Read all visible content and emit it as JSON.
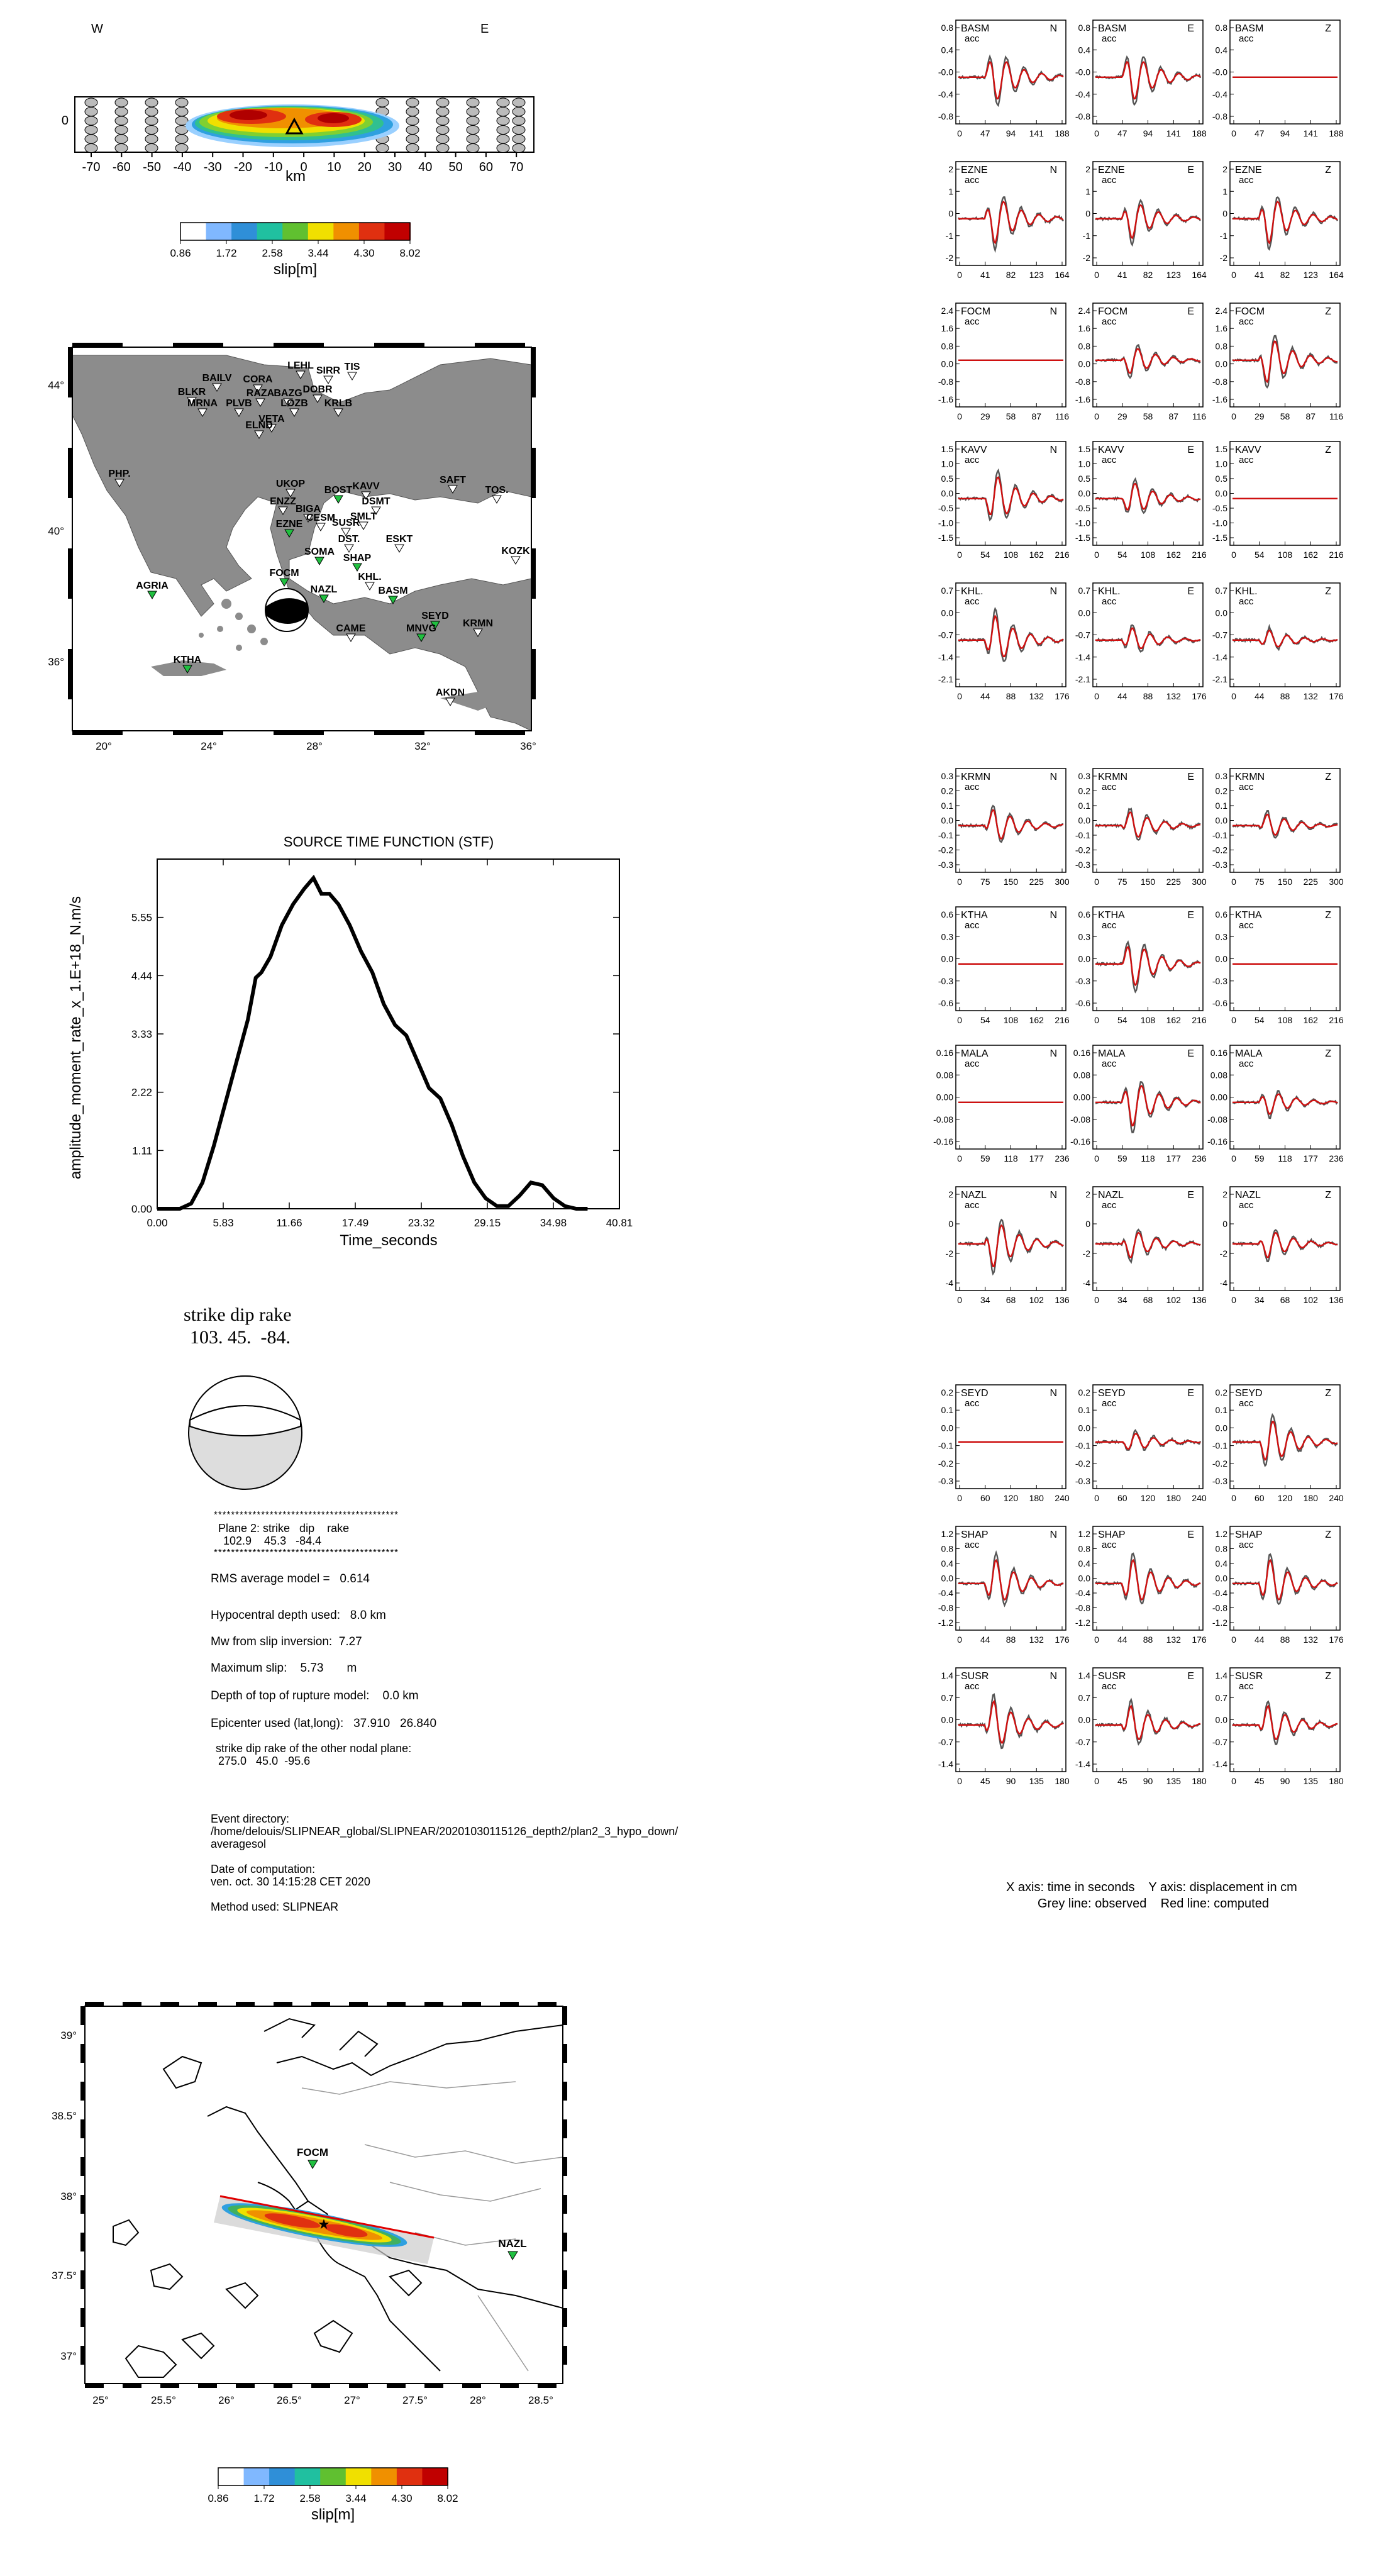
{
  "slip_section": {
    "west_label": "W",
    "east_label": "E",
    "km_label": "km",
    "x_ticks": [
      "-70",
      "-60",
      "-50",
      "-40",
      "-30",
      "-20",
      "-10",
      "0",
      "10",
      "20",
      "30",
      "40",
      "50",
      "60",
      "70"
    ],
    "y_tick": "0",
    "colorbar": {
      "ticks": [
        "0.86",
        "1.72",
        "2.58",
        "3.44",
        "4.30",
        "8.02"
      ],
      "label": "slip[m]",
      "colors": [
        "#ffffff",
        "#80b8ff",
        "#2f8fd8",
        "#20c0a0",
        "#60c030",
        "#f0e000",
        "#f09000",
        "#e03010",
        "#c00000"
      ]
    }
  },
  "station_map": {
    "lat_ticks": [
      "44°",
      "40°",
      "36°"
    ],
    "lon_ticks": [
      "20°",
      "24°",
      "28°",
      "32°",
      "36°"
    ],
    "stations": [
      "LEHL",
      "BAILV",
      "CORA",
      "SIRR",
      "TIS",
      "BLKR",
      "MRNA",
      "PLVB",
      "RAZA",
      "BAZG",
      "DOBR",
      "LOZB",
      "KRLB",
      "VETA",
      "ELND",
      "PHP.",
      "UKOP",
      "BOST",
      "KAVV",
      "SAFT",
      "TOS.",
      "ENZZ",
      "BIGA",
      "EZNE",
      "CESM",
      "SUSR",
      "DSMT",
      "SMLT",
      "DST.",
      "ESKT",
      "KOZK",
      "SOMA",
      "FOCM",
      "SHAP",
      "KHL.",
      "AGRIA",
      "NAZL",
      "BASM",
      "SEYD",
      "KRMN",
      "MNVG",
      "CAME",
      "KTHA",
      "AKDN"
    ]
  },
  "stf": {
    "title": "SOURCE TIME FUNCTION (STF)",
    "ylabel": "amplitude_moment_rate_x_1.E+18_N.m/s",
    "xlabel": "Time_seconds",
    "xticks": [
      "0.00",
      "5.83",
      "11.66",
      "17.49",
      "23.32",
      "29.15",
      "34.98",
      "40.81"
    ],
    "yticks": [
      "0.00",
      "1.11",
      "2.22",
      "3.33",
      "4.44",
      "5.55"
    ]
  },
  "chart_data": {
    "type": "line",
    "title": "SOURCE TIME FUNCTION (STF)",
    "xlabel": "Time_seconds",
    "ylabel": "amplitude_moment_rate_x_1.E+18_N.m/s",
    "xlim": [
      0,
      40.81
    ],
    "ylim": [
      0,
      6.66
    ],
    "x": [
      0,
      2,
      3,
      4,
      5,
      6,
      7,
      8,
      8.7,
      9.2,
      10,
      11,
      12,
      13,
      13.8,
      14.5,
      15.2,
      16,
      17,
      18,
      19,
      20,
      21,
      22,
      23,
      24,
      25,
      26,
      27,
      28,
      29,
      30,
      31,
      32,
      33,
      34,
      35,
      36,
      37,
      38
    ],
    "y": [
      0,
      0,
      0.1,
      0.5,
      1.2,
      2.0,
      2.8,
      3.6,
      4.4,
      4.5,
      4.8,
      5.4,
      5.8,
      6.1,
      6.3,
      6.0,
      6.0,
      5.8,
      5.4,
      4.9,
      4.5,
      3.9,
      3.5,
      3.3,
      2.8,
      2.3,
      2.1,
      1.6,
      1.0,
      0.5,
      0.2,
      0.05,
      0.05,
      0.25,
      0.5,
      0.45,
      0.2,
      0.05,
      0,
      0
    ]
  },
  "mech": {
    "header": "strike dip rake",
    "values": "103. 45.  -84."
  },
  "info": {
    "stars": "*******************************************",
    "plane2_label": "Plane 2: strike   dip    rake",
    "plane2_values": "102.9    45.3   -84.4",
    "rms": "RMS average model =   0.614",
    "depth": "Hypocentral depth used:   8.0 km",
    "mw": "Mw from slip inversion:  7.27",
    "maxslip": "Maximum slip:    5.73       m",
    "toprupture": "Depth of top of rupture model:    0.0 km",
    "epicenter": "Epicenter used (lat,long):   37.910   26.840",
    "other_plane_label": "strike dip rake of the other nodal plane:",
    "other_plane_values": "275.0   45.0  -95.6",
    "event_dir_label": "Event directory:",
    "event_dir_1": "/home/delouis/SLIPNEAR_global/SLIPNEAR/20201030115126_depth2/plan2_3_hypo_down/",
    "event_dir_2": "averagesol",
    "date_label": "Date of computation:",
    "date_value": "ven. oct. 30 14:15:28 CET 2020",
    "method": "Method used: SLIPNEAR"
  },
  "local_map": {
    "lat_ticks": [
      "39°",
      "38.5°",
      "38°",
      "37.5°",
      "37°"
    ],
    "lon_ticks": [
      "25°",
      "25.5°",
      "26°",
      "26.5°",
      "27°",
      "27.5°",
      "28°",
      "28.5°"
    ],
    "station_focm": "FOCM",
    "station_nazl": "NAZL"
  },
  "colorbar2": {
    "ticks": [
      "0.86",
      "1.72",
      "2.58",
      "3.44",
      "4.30",
      "8.02"
    ],
    "label": "slip[m]"
  },
  "waveforms": {
    "acc": "acc",
    "stations": [
      {
        "name": "BASM",
        "xt": [
          "0",
          "47",
          "94",
          "141",
          "188"
        ],
        "yt": [
          "0.8",
          "0.4",
          "-0.0",
          "-0.4",
          "-0.8"
        ],
        "amp": [
          1,
          1,
          0
        ]
      },
      {
        "name": "EZNE",
        "xt": [
          "0",
          "41",
          "82",
          "123",
          "164"
        ],
        "yt": [
          "2",
          "1",
          "0",
          "-1",
          "-2"
        ],
        "amp": [
          1,
          0.8,
          1
        ]
      },
      {
        "name": "FOCM",
        "xt": [
          "0",
          "29",
          "58",
          "87",
          "116"
        ],
        "yt": [
          "2.4",
          "1.6",
          "0.8",
          "0.0",
          "-0.8",
          "-1.6"
        ],
        "amp": [
          0,
          0.6,
          1
        ]
      },
      {
        "name": "KAVV",
        "xt": [
          "0",
          "54",
          "108",
          "162",
          "216"
        ],
        "yt": [
          "1.5",
          "1.0",
          "0.5",
          "0.0",
          "-0.5",
          "-1.0",
          "-1.5"
        ],
        "amp": [
          1,
          0.7,
          0
        ]
      },
      {
        "name": "KHL.",
        "xt": [
          "0",
          "44",
          "88",
          "132",
          "176"
        ],
        "yt": [
          "0.7",
          "0.0",
          "-0.7",
          "-1.4",
          "-2.1"
        ],
        "amp": [
          1,
          0.5,
          0.4
        ]
      },
      {
        "name": "KRMN",
        "xt": [
          "0",
          "75",
          "150",
          "225",
          "300"
        ],
        "yt": [
          "0.3",
          "0.2",
          "0.1",
          "0.0",
          "-0.1",
          "-0.2",
          "-0.3"
        ],
        "amp": [
          0.7,
          0.6,
          0.5
        ]
      },
      {
        "name": "KTHA",
        "xt": [
          "0",
          "54",
          "108",
          "162",
          "216"
        ],
        "yt": [
          "0.6",
          "0.3",
          "0.0",
          "-0.3",
          "-0.6"
        ],
        "amp": [
          0,
          1,
          0
        ]
      },
      {
        "name": "MALA",
        "xt": [
          "0",
          "59",
          "118",
          "177",
          "236"
        ],
        "yt": [
          "0.16",
          "0.08",
          "0.00",
          "-0.08",
          "-0.16"
        ],
        "amp": [
          0,
          1,
          0.5
        ]
      },
      {
        "name": "NAZL",
        "xt": [
          "0",
          "34",
          "68",
          "102",
          "136"
        ],
        "yt": [
          "2",
          "0",
          "-2",
          "-4"
        ],
        "amp": [
          1,
          0.6,
          0.6
        ]
      },
      {
        "name": "SEYD",
        "xt": [
          "0",
          "60",
          "120",
          "180",
          "240"
        ],
        "yt": [
          "0.2",
          "0.1",
          "0.0",
          "-0.1",
          "-0.2",
          "-0.3"
        ],
        "amp": [
          0,
          0.4,
          1
        ]
      },
      {
        "name": "SHAP",
        "xt": [
          "0",
          "44",
          "88",
          "132",
          "176"
        ],
        "yt": [
          "1.2",
          "0.8",
          "0.4",
          "0.0",
          "-0.4",
          "-0.8",
          "-1.2"
        ],
        "amp": [
          1,
          1,
          1
        ]
      },
      {
        "name": "SUSR",
        "xt": [
          "0",
          "45",
          "90",
          "135",
          "180"
        ],
        "yt": [
          "1.4",
          "0.7",
          "0.0",
          "-0.7",
          "-1.4"
        ],
        "amp": [
          1,
          0.8,
          0.8
        ]
      }
    ],
    "comps": [
      "N",
      "E",
      "Z"
    ],
    "caption1": "X axis: time in seconds    Y axis: displacement in cm",
    "caption2": "Grey line: observed    Red line: computed"
  }
}
